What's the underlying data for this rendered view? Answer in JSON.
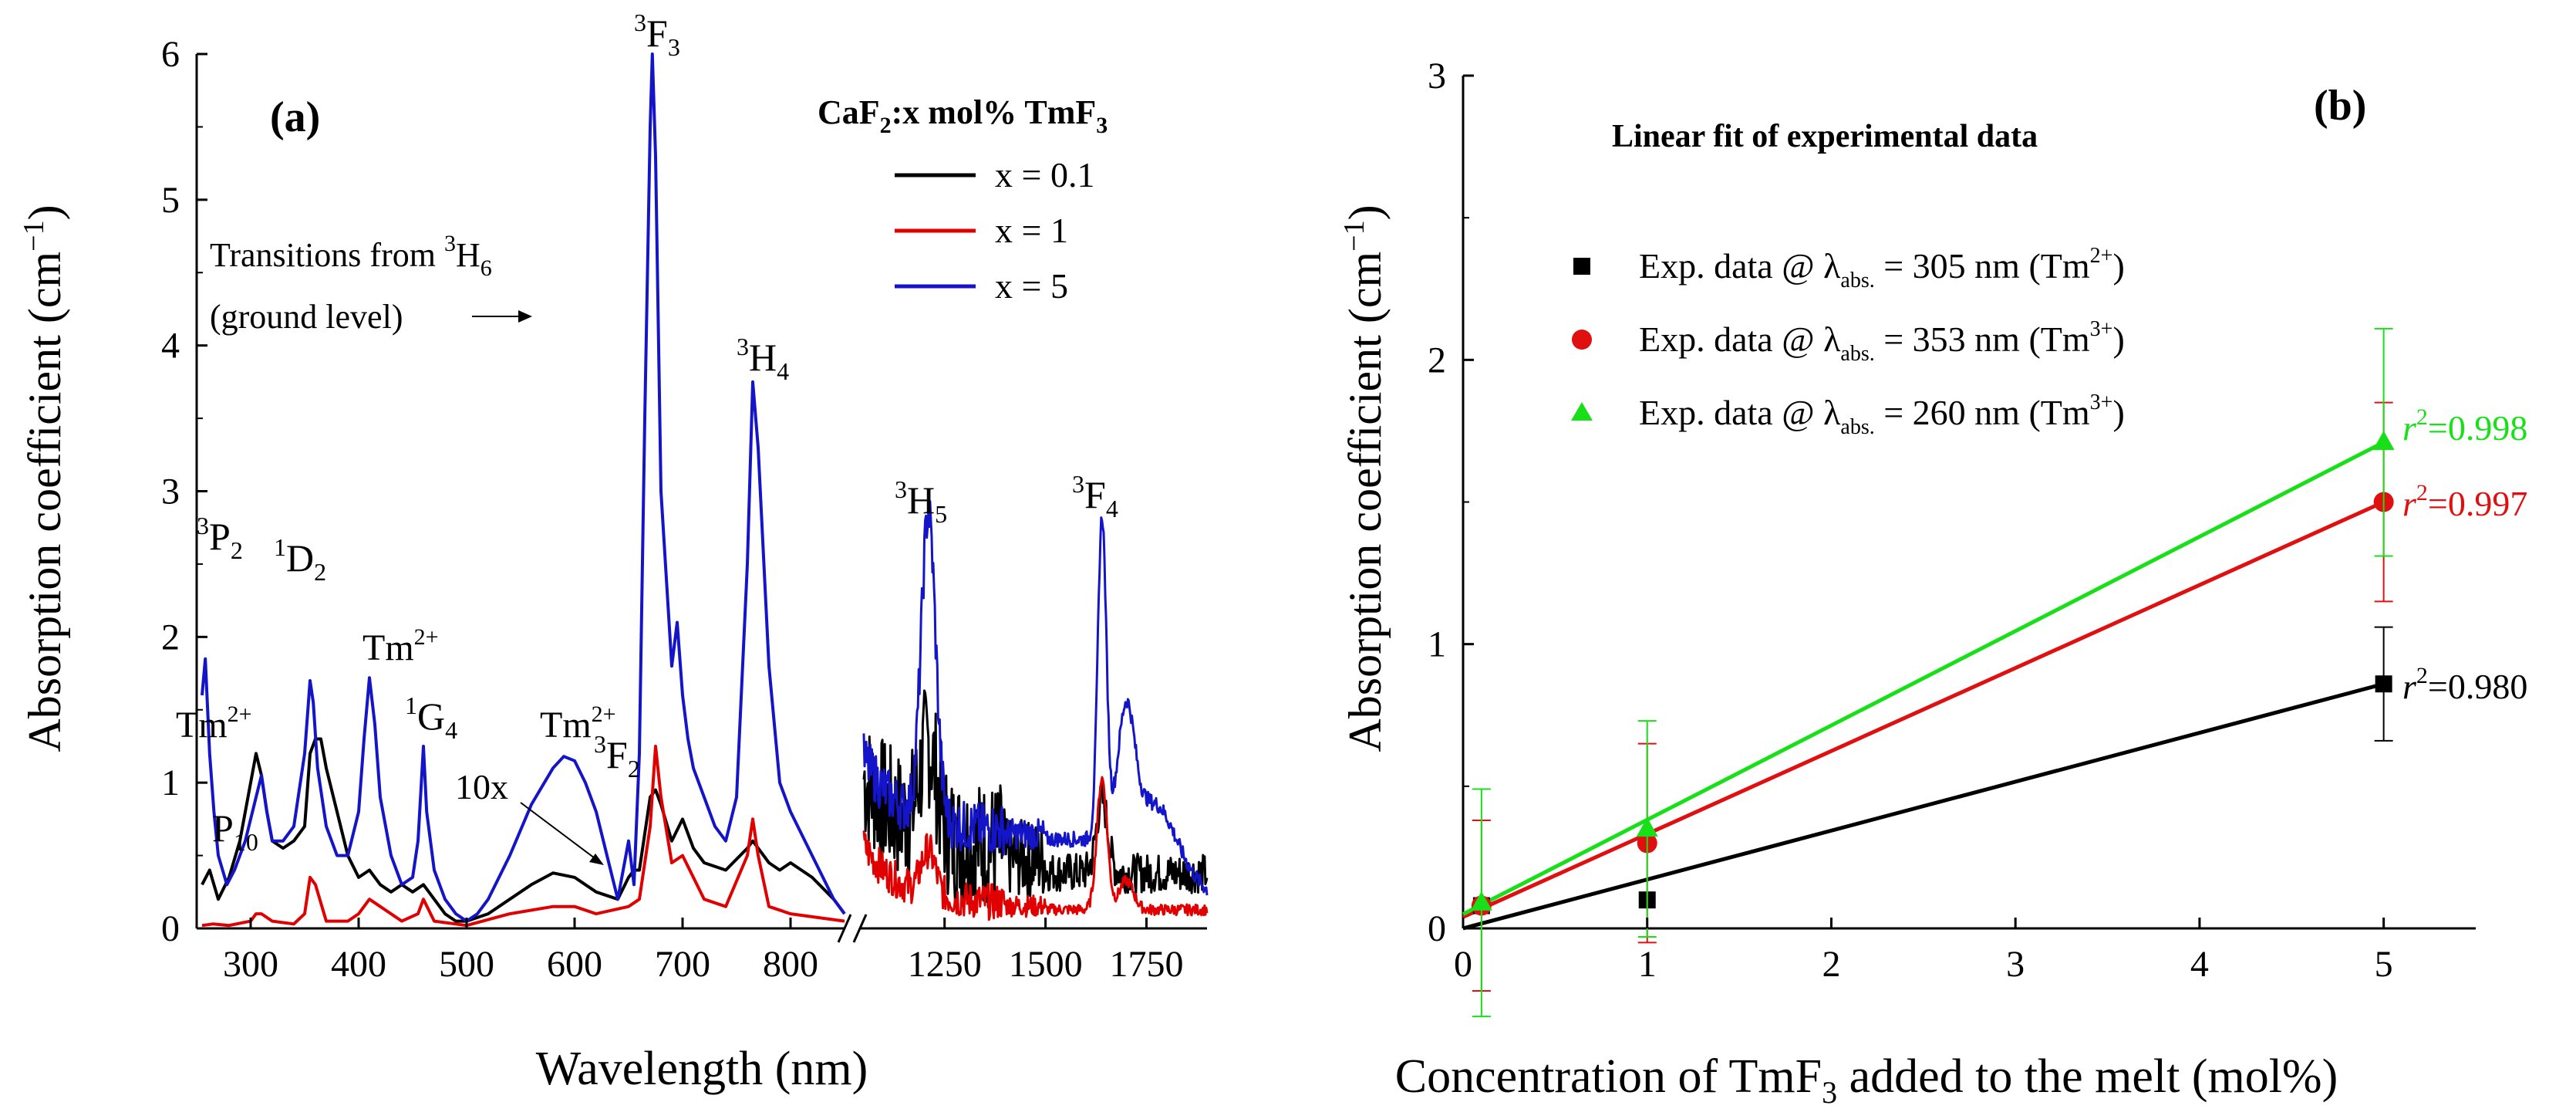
{
  "chart_data": [
    {
      "panel": "(a)",
      "type": "line",
      "xlabel": "Wavelength (nm)",
      "ylabel": "Absorption coefficient (cm",
      "ylabel_sup": "−1",
      "ylabel_close": ")",
      "ylim": [
        0,
        6
      ],
      "yticks": [
        "0",
        "1",
        "2",
        "3",
        "4",
        "5",
        "6"
      ],
      "xlim_left": [
        250,
        850
      ],
      "xlim_right": [
        1050,
        1900
      ],
      "xticks_left": [
        "300",
        "400",
        "500",
        "600",
        "700",
        "800"
      ],
      "xticks_right": [
        "1250",
        "1500",
        "1750"
      ],
      "legend": {
        "title_main": "CaF",
        "title_sub": "2",
        "title_rest": ":x mol% TmF",
        "title_sub2": "3",
        "entries": [
          "x = 0.1",
          "x = 1",
          "x = 5"
        ],
        "colors": [
          "#000000",
          "#e00000",
          "#1414c8"
        ]
      },
      "series": [
        {
          "name": "x = 0.1",
          "x": [
            255,
            262,
            270,
            280,
            290,
            300,
            305,
            310,
            315,
            320,
            330,
            340,
            350,
            355,
            360,
            365,
            370,
            380,
            390,
            400,
            410,
            420,
            430,
            440,
            450,
            460,
            470,
            480,
            490,
            500,
            520,
            540,
            560,
            580,
            600,
            620,
            640,
            650,
            655,
            660,
            670,
            675,
            680,
            690,
            700,
            710,
            720,
            740,
            760,
            765,
            770,
            780,
            790,
            800,
            820,
            840,
            850
          ],
          "y": [
            0.3,
            0.4,
            0.2,
            0.35,
            0.6,
            1.0,
            1.2,
            1.05,
            0.8,
            0.6,
            0.55,
            0.6,
            0.7,
            1.2,
            1.3,
            1.3,
            1.1,
            0.8,
            0.5,
            0.35,
            0.4,
            0.3,
            0.25,
            0.3,
            0.25,
            0.3,
            0.2,
            0.1,
            0.05,
            0.05,
            0.1,
            0.2,
            0.3,
            0.38,
            0.35,
            0.25,
            0.2,
            0.35,
            0.4,
            0.4,
            0.9,
            0.95,
            0.85,
            0.6,
            0.75,
            0.55,
            0.45,
            0.4,
            0.55,
            0.6,
            0.55,
            0.45,
            0.4,
            0.45,
            0.35,
            0.2,
            0.1
          ]
        },
        {
          "name": "x = 1",
          "x": [
            255,
            265,
            280,
            300,
            305,
            310,
            320,
            340,
            350,
            355,
            360,
            370,
            390,
            400,
            410,
            420,
            440,
            455,
            460,
            470,
            500,
            540,
            580,
            600,
            620,
            650,
            660,
            670,
            675,
            680,
            690,
            700,
            720,
            740,
            760,
            765,
            770,
            780,
            800,
            850
          ],
          "y": [
            0.02,
            0.03,
            0.02,
            0.05,
            0.1,
            0.1,
            0.05,
            0.03,
            0.1,
            0.35,
            0.3,
            0.05,
            0.05,
            0.1,
            0.2,
            0.15,
            0.05,
            0.1,
            0.2,
            0.05,
            0.02,
            0.1,
            0.15,
            0.15,
            0.1,
            0.15,
            0.2,
            0.7,
            1.25,
            0.9,
            0.45,
            0.5,
            0.2,
            0.15,
            0.5,
            0.75,
            0.5,
            0.15,
            0.1,
            0.05
          ]
        },
        {
          "name": "x = 5",
          "x": [
            255,
            258,
            262,
            266,
            270,
            278,
            285,
            295,
            305,
            310,
            315,
            320,
            330,
            340,
            350,
            355,
            358,
            362,
            370,
            380,
            390,
            400,
            405,
            410,
            415,
            420,
            430,
            440,
            450,
            455,
            460,
            463,
            470,
            480,
            490,
            500,
            510,
            520,
            540,
            560,
            580,
            590,
            600,
            610,
            620,
            630,
            640,
            650,
            655,
            660,
            665,
            670,
            672,
            675,
            680,
            690,
            695,
            700,
            705,
            710,
            720,
            730,
            740,
            750,
            760,
            765,
            770,
            780,
            790,
            800,
            820,
            840,
            850
          ],
          "y": [
            1.6,
            1.85,
            1.2,
            0.8,
            0.5,
            0.3,
            0.4,
            0.6,
            0.9,
            1.05,
            0.8,
            0.6,
            0.6,
            0.7,
            1.2,
            1.7,
            1.55,
            1.1,
            0.7,
            0.5,
            0.5,
            0.8,
            1.3,
            1.72,
            1.4,
            0.9,
            0.5,
            0.3,
            0.35,
            0.6,
            1.25,
            0.8,
            0.4,
            0.2,
            0.1,
            0.05,
            0.1,
            0.2,
            0.5,
            0.85,
            1.1,
            1.18,
            1.15,
            1.0,
            0.8,
            0.5,
            0.2,
            0.6,
            0.3,
            1.2,
            3.5,
            5.5,
            6.0,
            5.3,
            3.0,
            1.8,
            2.1,
            1.6,
            1.3,
            1.1,
            0.9,
            0.7,
            0.6,
            0.9,
            2.5,
            3.75,
            3.3,
            1.8,
            1.0,
            0.8,
            0.5,
            0.2,
            0.1
          ]
        }
      ],
      "annotations": [
        {
          "text": "3",
          "sub_text": "F",
          "tail": "3",
          "kind": "term"
        },
        {
          "text": "Transitions from ",
          "sup": "3",
          "tail": "H",
          "sub": "6",
          "line2": "(ground level)"
        },
        {
          "text": "10x"
        },
        {
          "text": "Tm",
          "sup": "2+"
        }
      ],
      "labels": {
        "3F3": [
          "3",
          "F",
          "3"
        ],
        "3H4": [
          "3",
          "H",
          "4"
        ],
        "3H5": [
          "3",
          "H",
          "5"
        ],
        "3F4": [
          "3",
          "F",
          "4"
        ],
        "3P2": [
          "3",
          "P",
          "2"
        ],
        "1D2": [
          "1",
          "D",
          "2"
        ],
        "1G4": [
          "1",
          "G",
          "4"
        ],
        "3F2": [
          "3",
          "F",
          "2"
        ],
        "P1": [
          "P",
          "1",
          "0"
        ],
        "transitions_line1": "Transitions from ",
        "transitions_sup": "3",
        "transitions_H": "H",
        "transitions_sub": "6",
        "transitions_line2": "(ground level)",
        "tenx": "10x",
        "tm": "Tm",
        "tm_sup": "2+"
      }
    },
    {
      "panel": "(b)",
      "type": "scatter",
      "title": "Linear fit of experimental data",
      "xlabel_pre": "Concentration of TmF",
      "xlabel_sub": "3",
      "xlabel_post": " added to the melt (mol%)",
      "ylabel": "Absorption coefficient (cm",
      "ylabel_sup": "−1",
      "ylabel_close": ")",
      "xlim": [
        0,
        5.5
      ],
      "ylim": [
        0,
        3
      ],
      "xticks": [
        "0",
        "1",
        "2",
        "3",
        "4",
        "5"
      ],
      "yticks": [
        "0",
        "1",
        "2",
        "3"
      ],
      "series": [
        {
          "name": "Exp. data @ λabs. = 305 nm (Tm2+)",
          "pre": "Exp. data @ λ",
          "sub": "abs.",
          "mid": " = 305 nm (Tm",
          "sup": "2+",
          "post": ")",
          "color": "#000000",
          "marker": "square",
          "x": [
            0.1,
            1,
            5
          ],
          "y": [
            0.08,
            0.1,
            0.86
          ],
          "err": [
            0.0,
            0.0,
            0.2
          ],
          "fit": [
            [
              0,
              0
            ],
            [
              5,
              0.86
            ]
          ],
          "r2_label": "r",
          "r2_sup": "2",
          "r2_value": "=0.980"
        },
        {
          "name": "Exp. data @ λabs. = 353 nm (Tm3+)",
          "pre": "Exp. data @ λ",
          "sub": "abs.",
          "mid": " = 353 nm (Tm",
          "sup": "3+",
          "post": ")",
          "color": "#e01010",
          "marker": "circle",
          "x": [
            0.1,
            1,
            5
          ],
          "y": [
            0.08,
            0.3,
            1.5
          ],
          "err": [
            0.3,
            0.35,
            0.35
          ],
          "fit": [
            [
              0,
              0.04
            ],
            [
              5,
              1.5
            ]
          ],
          "r2_label": "r",
          "r2_sup": "2",
          "r2_value": "=0.997"
        },
        {
          "name": "Exp. data @ λabs. = 260 nm (Tm3+)",
          "pre": "Exp. data @ λ",
          "sub": "abs.",
          "mid": " = 260 nm (Tm",
          "sup": "3+",
          "post": ")",
          "color": "#18e018",
          "marker": "triangle",
          "x": [
            0.1,
            1,
            5
          ],
          "y": [
            0.09,
            0.35,
            1.71
          ],
          "err": [
            0.4,
            0.38,
            0.4
          ],
          "fit": [
            [
              0,
              0.05
            ],
            [
              5,
              1.71
            ]
          ],
          "r2_label": "r",
          "r2_sup": "2",
          "r2_value": "=0.998"
        }
      ]
    }
  ]
}
